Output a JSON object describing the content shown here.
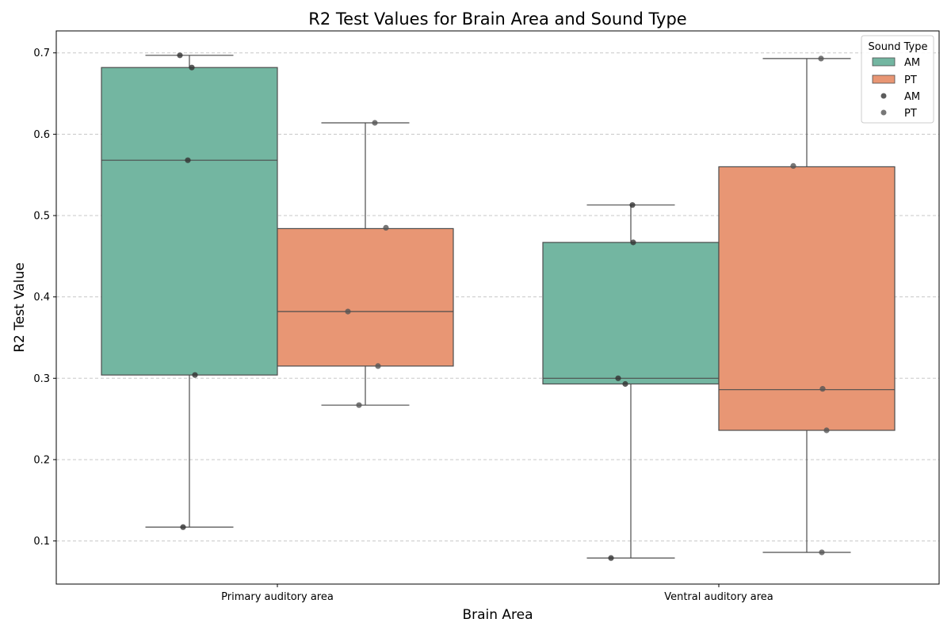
{
  "chart_data": {
    "type": "box",
    "title": "R2 Test Values for Brain Area and Sound Type",
    "xlabel": "Brain Area",
    "ylabel": "R2 Test Value",
    "ylim": [
      0.047,
      0.727
    ],
    "yticks": [
      "0.1",
      "0.2",
      "0.3",
      "0.4",
      "0.5",
      "0.6",
      "0.7"
    ],
    "grid": "y dashed",
    "categories": [
      "Primary auditory area",
      "Ventral auditory area"
    ],
    "legend": {
      "title": "Sound Type",
      "placement": "top-right",
      "entries": [
        "AM",
        "PT",
        "AM",
        "PT"
      ]
    },
    "series": [
      {
        "name": "AM",
        "color": "#73b6a1",
        "boxes": [
          {
            "q1": 0.304,
            "median": 0.568,
            "q3": 0.682,
            "whisker_low": 0.117,
            "whisker_high": 0.697
          },
          {
            "q1": 0.293,
            "median": 0.3,
            "q3": 0.467,
            "whisker_low": 0.079,
            "whisker_high": 0.513
          }
        ],
        "points": [
          [
            0.697,
            0.682,
            0.568,
            0.304,
            0.117
          ],
          [
            0.513,
            0.467,
            0.3,
            0.293,
            0.079
          ]
        ]
      },
      {
        "name": "PT",
        "color": "#e89674",
        "boxes": [
          {
            "q1": 0.315,
            "median": 0.382,
            "q3": 0.484,
            "whisker_low": 0.267,
            "whisker_high": 0.614
          },
          {
            "q1": 0.236,
            "median": 0.286,
            "q3": 0.56,
            "whisker_low": 0.086,
            "whisker_high": 0.693
          }
        ],
        "points": [
          [
            0.614,
            0.485,
            0.382,
            0.315,
            0.267
          ],
          [
            0.693,
            0.561,
            0.287,
            0.236,
            0.086
          ]
        ]
      }
    ]
  }
}
